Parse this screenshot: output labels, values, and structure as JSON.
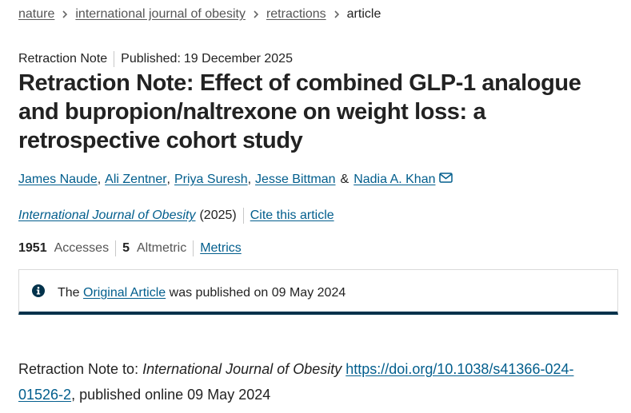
{
  "breadcrumb": {
    "items": [
      {
        "label": "nature"
      },
      {
        "label": "international journal of obesity"
      },
      {
        "label": "retractions"
      }
    ],
    "current": "article"
  },
  "article": {
    "type": "Retraction Note",
    "published_label": "Published:",
    "published_date": "19 December 2025",
    "title": "Retraction Note: Effect of combined GLP-1 analogue and bupropion/naltrexone on weight loss: a retrospective cohort study",
    "authors": [
      "James Naude",
      "Ali Zentner",
      "Priya Suresh",
      "Jesse Bittman",
      "Nadia A. Khan"
    ],
    "author_separator": ",",
    "author_conjunction": "&",
    "journal": "International Journal of Obesity",
    "year": "(2025)",
    "cite_label": "Cite this article"
  },
  "metrics": {
    "accesses_value": "1951",
    "accesses_label": "Accesses",
    "altmetric_value": "5",
    "altmetric_label": "Altmetric",
    "metrics_link": "Metrics"
  },
  "notice": {
    "prefix": "The",
    "link": "Original Article",
    "suffix": "was published on 09 May 2024"
  },
  "body": {
    "prefix": "Retraction Note to:",
    "journal": "International Journal of Obesity",
    "doi": "https://doi.org/10.1038/s41366-024-01526-2",
    "suffix": ", published online 09 May 2024"
  },
  "icons": {
    "breadcrumb_separator": "chevron-right-icon",
    "corresponding_author": "envelope-icon",
    "notice": "info-icon"
  },
  "colors": {
    "link": "#025e8d",
    "notice_border": "#01324b",
    "text": "#222222"
  }
}
